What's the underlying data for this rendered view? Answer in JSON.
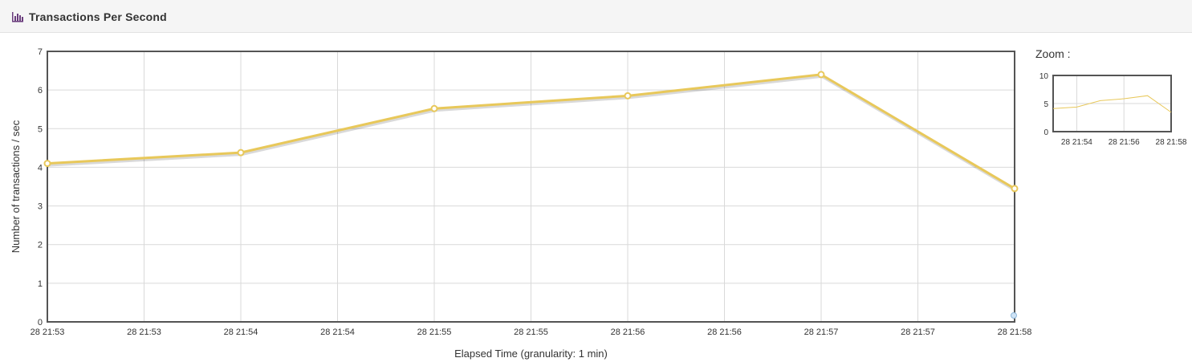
{
  "header": {
    "title": "Transactions Per Second",
    "icon": "bar-chart-icon"
  },
  "zoom": {
    "label": "Zoom :"
  },
  "chart_data": {
    "type": "line",
    "title": "",
    "xlabel": "Elapsed Time (granularity: 1 min)",
    "ylabel": "Number of transactions / sec",
    "ylim": [
      0,
      7
    ],
    "yticks": [
      "0",
      "1",
      "2",
      "3",
      "4",
      "5",
      "6",
      "7"
    ],
    "xtick_labels": [
      "28 21:53",
      "28 21:53",
      "28 21:54",
      "28 21:54",
      "28 21:55",
      "28 21:55",
      "28 21:56",
      "28 21:56",
      "28 21:57",
      "28 21:57",
      "28 21:58"
    ],
    "grid": true,
    "series": [
      {
        "color": "#e8c85a",
        "points": [
          {
            "x": "28 21:53",
            "y": 4.1
          },
          {
            "x": "28 21:54",
            "y": 4.38
          },
          {
            "x": "28 21:55",
            "y": 5.52
          },
          {
            "x": "28 21:56",
            "y": 5.85
          },
          {
            "x": "28 21:57",
            "y": 6.4
          },
          {
            "x": "28 21:58",
            "y": 3.45
          }
        ]
      }
    ],
    "zoom_chart": {
      "ylim": [
        0,
        10
      ],
      "yticks": [
        "0",
        "5",
        "10"
      ],
      "xtick_labels": [
        "28 21:54",
        "28 21:56",
        "28 21:58"
      ]
    }
  }
}
